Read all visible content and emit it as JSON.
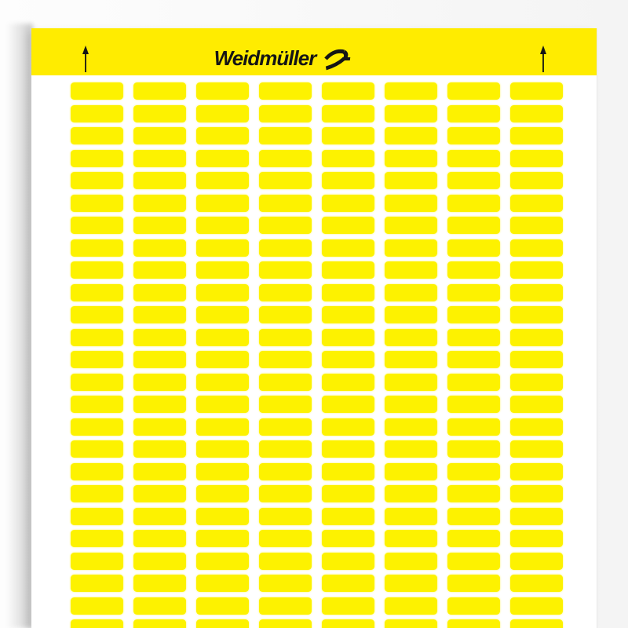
{
  "header": {
    "brand": "Weidmüller",
    "logo_icon": "weidmueller-mark",
    "alignment_arrows": {
      "left": "up-arrow",
      "right": "up-arrow"
    }
  },
  "sheet": {
    "columns": 8,
    "rows": 25,
    "last_row_partially_cropped": true,
    "label_shape": "rounded-rectangle"
  },
  "colors": {
    "band-yellow": "#ffe c00",
    "label-yellow": "#fdf200",
    "sheet-white": "#ffffff",
    "background-left": "#fdfdfd",
    "background-right": "#f4f4f4",
    "ink": "#151515"
  }
}
